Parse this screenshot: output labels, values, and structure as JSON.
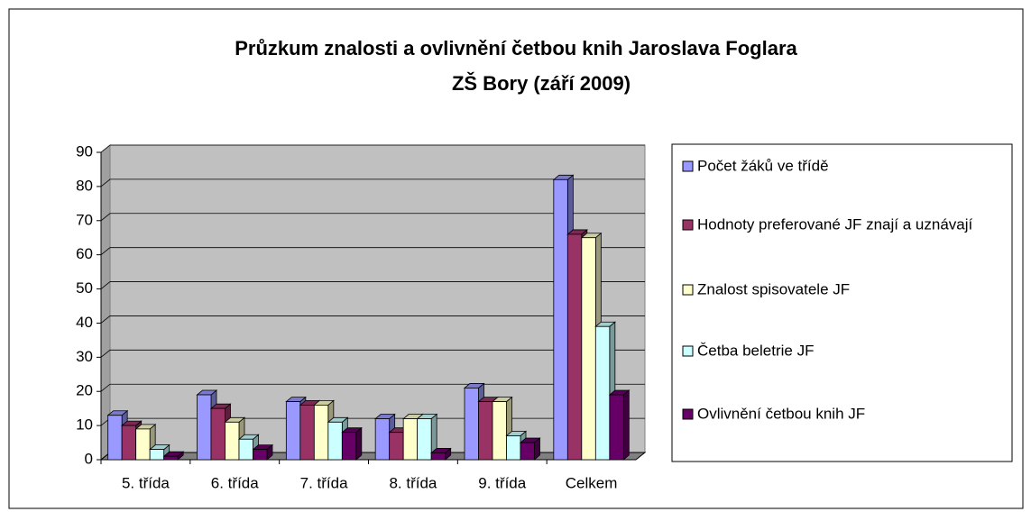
{
  "chart_data": {
    "type": "bar",
    "title": [
      "Průzkum  znalosti a  ovlivnění  četbou knih  Jaroslava Foglara",
      "ZŠ Bory  (září 2009)"
    ],
    "categories": [
      "5. třída",
      "6. třída",
      "7. třída",
      "8. třída",
      "9. třída",
      "Celkem"
    ],
    "series": [
      {
        "name": "Počet žáků ve třídě",
        "color": "#9999ff",
        "values": [
          13,
          19,
          17,
          12,
          21,
          82
        ]
      },
      {
        "name": "Hodnoty preferované JF znají a uznávají",
        "color": "#993366",
        "values": [
          10,
          15,
          16,
          8,
          17,
          66
        ]
      },
      {
        "name": "Znalost spisovatele JF",
        "color": "#ffffcc",
        "values": [
          9,
          11,
          16,
          12,
          17,
          65
        ]
      },
      {
        "name": "Četba beletrie JF",
        "color": "#ccffff",
        "values": [
          3,
          6,
          11,
          12,
          7,
          39
        ]
      },
      {
        "name": "Ovlivnění četbou knih JF",
        "color": "#660066",
        "values": [
          1,
          3,
          8,
          2,
          5,
          19
        ]
      }
    ],
    "ylim": [
      0,
      90
    ],
    "yticks": [
      0,
      10,
      20,
      30,
      40,
      50,
      60,
      70,
      80,
      90
    ],
    "grid": true,
    "legend": "right"
  }
}
